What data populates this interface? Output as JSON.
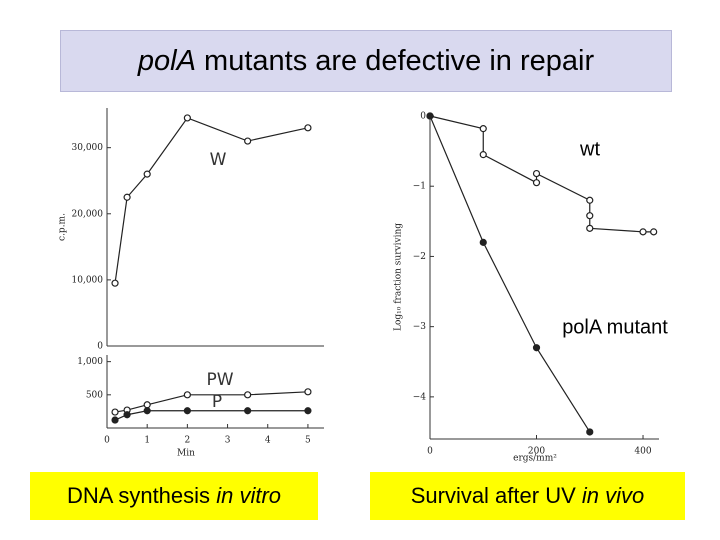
{
  "slide": {
    "title": {
      "italic": "polA",
      "rest": "mutants are defective in repair"
    },
    "captions": [
      {
        "plain": "DNA synthesis",
        "italic": "in vitro"
      },
      {
        "plain": "Survival after UV",
        "italic": "in vivo"
      }
    ]
  },
  "chart_data": [
    {
      "type": "line",
      "ylabel": "c.p.m.",
      "xlim": [
        0,
        5.4
      ],
      "ylim": [
        0,
        36000
      ],
      "yticks": [
        0,
        {
          "value": 10000,
          "label": "10,000"
        },
        {
          "value": 20000,
          "label": "20,000"
        },
        {
          "value": 30000,
          "label": "30,000"
        }
      ],
      "series": [
        {
          "name": "W",
          "color": "#222222",
          "marker": "open",
          "x": [
            0.2,
            0.5,
            1,
            2,
            3.5,
            5
          ],
          "values": [
            9500,
            22500,
            26000,
            34500,
            31000,
            33000
          ]
        }
      ]
    },
    {
      "type": "line",
      "xlabel": "Min",
      "xlim": [
        0,
        5.4
      ],
      "ylim": [
        0,
        1100
      ],
      "xticks": [
        0,
        1,
        2,
        3,
        4,
        5
      ],
      "yticks": [
        500,
        {
          "value": 1000,
          "label": "1,000"
        }
      ],
      "series": [
        {
          "name": "PW",
          "color": "#222222",
          "marker": "open",
          "x": [
            0.2,
            0.5,
            1,
            2,
            3.5,
            5
          ],
          "values": [
            240,
            270,
            350,
            500,
            500,
            545
          ]
        },
        {
          "name": "P",
          "color": "#222222",
          "marker": "filled",
          "x": [
            0.2,
            0.5,
            1,
            2,
            3.5,
            5
          ],
          "values": [
            120,
            200,
            260,
            260,
            260,
            260
          ]
        }
      ]
    },
    {
      "type": "line",
      "xlabel": "ergs/mm²",
      "ylabel": "Log₁₀ fraction surviving",
      "xlim": [
        0,
        430
      ],
      "ylim": [
        -4.6,
        0
      ],
      "xticks": [
        0,
        200,
        400
      ],
      "yticks": [
        0,
        {
          "value": -1,
          "label": "−1"
        },
        {
          "value": -2,
          "label": "−2"
        },
        {
          "value": -3,
          "label": "−3"
        },
        {
          "value": -4,
          "label": "−4"
        }
      ],
      "series": [
        {
          "name": "wt",
          "color": "#222222",
          "marker": "open",
          "x": [
            0,
            100,
            100,
            200,
            200,
            300,
            300,
            300,
            400,
            420
          ],
          "values": [
            0,
            -0.18,
            -0.55,
            -0.95,
            -0.82,
            -1.2,
            -1.42,
            -1.6,
            -1.65,
            -1.65
          ]
        },
        {
          "name": "polA mutant",
          "color": "#222222",
          "marker": "filled",
          "x": [
            0,
            100,
            200,
            300
          ],
          "values": [
            0,
            -1.8,
            -3.3,
            -4.5
          ]
        }
      ]
    }
  ]
}
